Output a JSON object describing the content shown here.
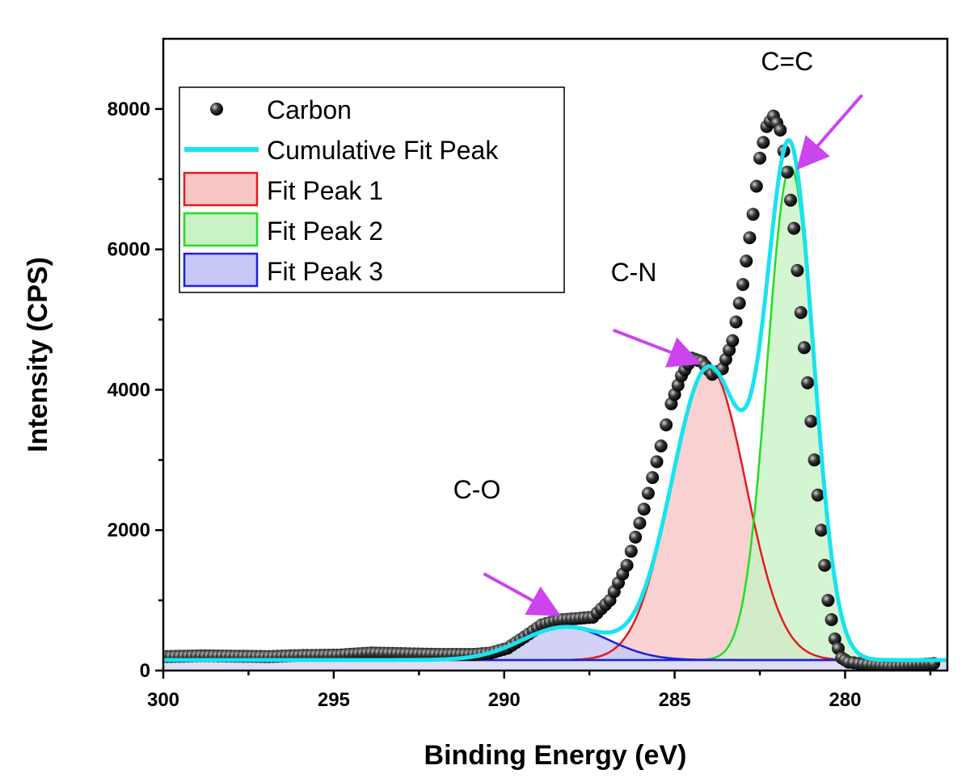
{
  "chart_data": {
    "type": "line",
    "xlabel": "Binding Energy (eV)",
    "ylabel": "Intensity (CPS)",
    "xlim": [
      300,
      277
    ],
    "ylim": [
      0,
      9000
    ],
    "x_reversed": true,
    "x_ticks": [
      300,
      295,
      290,
      285,
      280
    ],
    "y_ticks": [
      0,
      2000,
      4000,
      6000,
      8000
    ],
    "x_tick_labels": [
      "300",
      "295",
      "290",
      "285",
      "280"
    ],
    "y_tick_labels": [
      "0",
      "2000",
      "4000",
      "6000",
      "8000"
    ],
    "legend_position": "top-left",
    "baseline": 150,
    "series": [
      {
        "name": "Carbon",
        "kind": "scatter",
        "color": "#111111",
        "x": [
          299.9,
          298.9,
          297.9,
          296.9,
          295.9,
          294.9,
          293.9,
          292.9,
          291.9,
          290.9,
          290.4,
          289.9,
          289.4,
          288.9,
          288.4,
          287.9,
          287.4,
          286.9,
          286.4,
          285.9,
          285.4,
          285.1,
          284.8,
          284.5,
          284.2,
          283.9,
          283.6,
          283.3,
          283.0,
          282.7,
          282.5,
          282.3,
          282.1,
          281.9,
          281.7,
          281.5,
          281.3,
          281.1,
          280.9,
          280.7,
          280.5,
          280.3,
          280.1,
          279.9,
          279.6,
          279.2,
          278.6,
          278.0,
          277.4
        ],
        "y": [
          200,
          210,
          205,
          200,
          215,
          220,
          250,
          240,
          230,
          230,
          250,
          320,
          480,
          650,
          720,
          740,
          760,
          1000,
          1500,
          2300,
          3200,
          3800,
          4200,
          4450,
          4400,
          4220,
          4300,
          4700,
          5500,
          6500,
          7300,
          7750,
          7900,
          7700,
          7100,
          6300,
          5100,
          4100,
          3000,
          2000,
          1000,
          450,
          180,
          120,
          100,
          80,
          60,
          80,
          100
        ]
      },
      {
        "name": "Cumulative Fit Peak",
        "kind": "line",
        "color": "#19e3ef"
      },
      {
        "name": "Fit Peak 1",
        "kind": "area",
        "color": "#e41a1c",
        "fill": "#f8c6c6",
        "center": 284.0,
        "amplitude": 4170,
        "fwhm": 2.55
      },
      {
        "name": "Fit Peak 2",
        "kind": "area",
        "color": "#22dd22",
        "fill": "#c9f3c6",
        "center": 281.6,
        "amplitude": 7030,
        "fwhm": 1.6
      },
      {
        "name": "Fit Peak 3",
        "kind": "area",
        "color": "#1f1fe0",
        "fill": "#c7c7f5",
        "center": 288.2,
        "amplitude": 470,
        "fwhm": 3.0
      }
    ],
    "annotations": [
      {
        "text": "C=C",
        "x": 281.7,
        "y": 8550,
        "arrow_from": [
          279.5,
          8200
        ],
        "arrow_to": [
          281.3,
          7200
        ]
      },
      {
        "text": "C-N",
        "x": 286.2,
        "y": 5550,
        "arrow_from": [
          286.8,
          4850
        ],
        "arrow_to": [
          284.4,
          4400
        ]
      },
      {
        "text": "C-O",
        "x": 290.8,
        "y": 2450,
        "arrow_from": [
          290.6,
          1380
        ],
        "arrow_to": [
          288.5,
          820
        ]
      }
    ],
    "annotation_arrow_color": "#cc44ee"
  }
}
